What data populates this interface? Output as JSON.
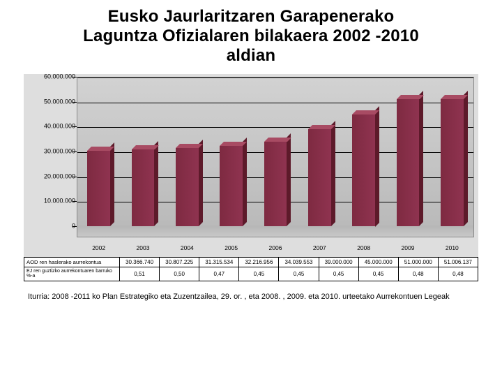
{
  "title_line1": "Eusko Jaurlaritzaren Garapenerako",
  "title_line2": "Laguntza Ofizialaren bilakaera 2002 -2010",
  "title_line3": "aldian",
  "chart": {
    "type": "bar",
    "categories": [
      "2002",
      "2003",
      "2004",
      "2005",
      "2006",
      "2007",
      "2008",
      "2009",
      "2010"
    ],
    "values": [
      30366740,
      30807225,
      31315534,
      32216956,
      34039553,
      39000000,
      45000000,
      51000000,
      51006137
    ],
    "bar_front_color": "#8a2f49",
    "bar_top_color": "#a84b63",
    "bar_side_color": "#5d1a2a",
    "panel_color": "#c8c8c8",
    "wrap_color": "#dedede",
    "ylim": [
      0,
      60000000
    ],
    "ytick_step": 10000000,
    "ytick_labels": [
      "0",
      "10.000.000",
      "20.000.000",
      "30.000.000",
      "40.000.000",
      "50.000.000",
      "60.000.000"
    ],
    "floor_height": 16,
    "aspect_w": 652,
    "aspect_h": 262,
    "title_fontsize": 24,
    "tick_fontsize": 9
  },
  "table": {
    "row1_head": "AOD ren haslerako aurrekontua",
    "row1_cells": [
      "30.366.740",
      "30.807.225",
      "31.315.534",
      "32.216.956",
      "34.039.553",
      "39.000.000",
      "45.000.000",
      "51.000.000",
      "51.006.137"
    ],
    "row2_head": "EJ ren guztizko aurrekontuaren barruko %-a",
    "row2_cells": [
      "0,51",
      "0,50",
      "0,47",
      "0,45",
      "0,45",
      "0,45",
      "0,45",
      "0,48",
      "0,48"
    ]
  },
  "source": "Iturria: 2008 -2011 ko Plan Estrategiko eta Zuzentzailea, 29. or. , eta 2008. , 2009. eta 2010. urteetako Aurrekontuen Legeak"
}
